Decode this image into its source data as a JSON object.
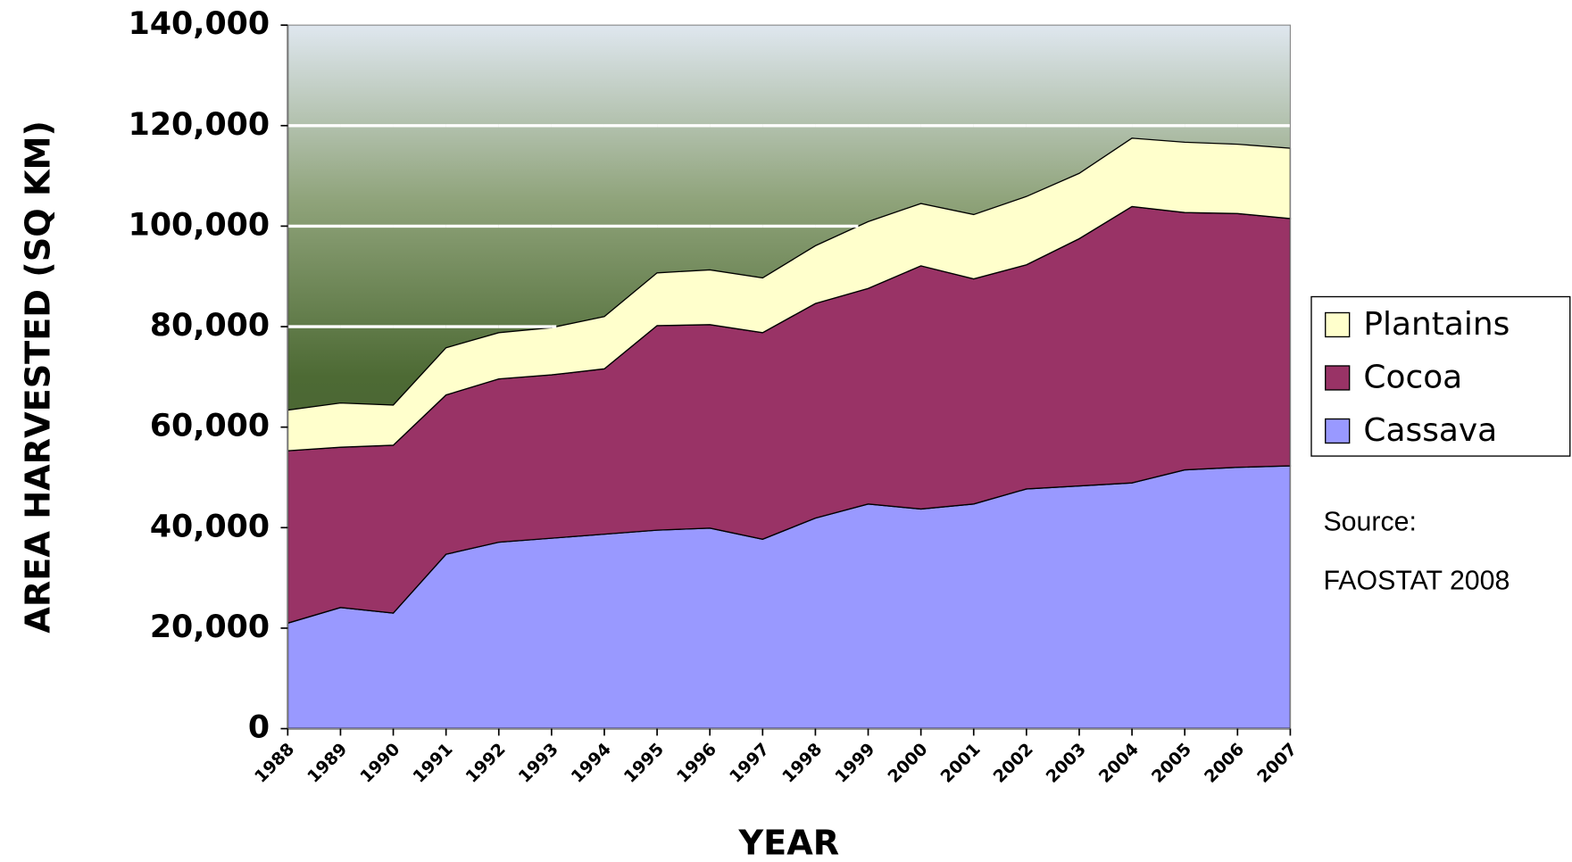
{
  "chart_data": {
    "type": "stacked-area",
    "x_label": "YEAR",
    "y_label": "AREA HARVESTED (SQ KM)",
    "categories": [
      "1988",
      "1989",
      "1990",
      "1991",
      "1992",
      "1993",
      "1994",
      "1995",
      "1996",
      "1997",
      "1998",
      "1999",
      "2000",
      "2001",
      "2002",
      "2003",
      "2004",
      "2005",
      "2006",
      "2007"
    ],
    "series": [
      {
        "name": "Cassava",
        "color": "#9999ff",
        "values": [
          21000,
          24100,
          23000,
          34700,
          37100,
          37900,
          38700,
          39500,
          39900,
          37700,
          41900,
          44700,
          43700,
          44700,
          47700,
          48300,
          48900,
          51500,
          52000,
          52300
        ]
      },
      {
        "name": "Cocoa",
        "color": "#993366",
        "values": [
          34300,
          31900,
          33400,
          31700,
          32500,
          32500,
          32900,
          40700,
          40500,
          41100,
          42700,
          42900,
          48400,
          44800,
          44600,
          49200,
          55000,
          51200,
          50500,
          49200
        ]
      },
      {
        "name": "Plantains",
        "color": "#ffffcc",
        "values": [
          8100,
          8800,
          8000,
          9400,
          9200,
          9400,
          10400,
          10500,
          10900,
          10900,
          11500,
          13300,
          12400,
          12800,
          13600,
          13000,
          13600,
          14000,
          13800,
          14000
        ]
      }
    ],
    "ylim": [
      0,
      140000
    ],
    "yticks": [
      0,
      {
        "value": 20000,
        "label": "20,000"
      },
      {
        "value": 40000,
        "label": "40,000"
      },
      {
        "value": 60000,
        "label": "60,000"
      },
      {
        "value": 80000,
        "label": "80,000"
      },
      {
        "value": 100000,
        "label": "100,000"
      },
      {
        "value": 120000,
        "label": "120,000"
      },
      {
        "value": 140000,
        "label": "140,000"
      }
    ],
    "grid": true,
    "legend": "right",
    "annotations": [
      "Source:",
      "FAOSTAT 2008"
    ]
  }
}
